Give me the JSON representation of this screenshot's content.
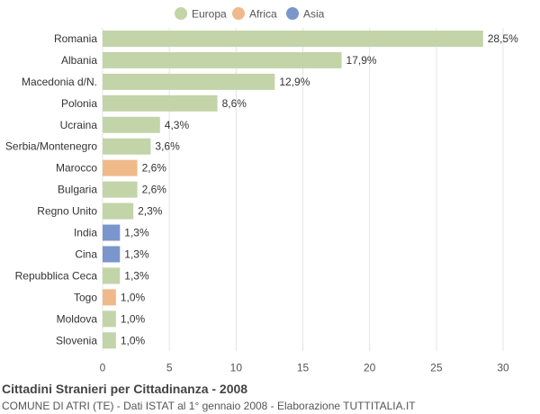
{
  "chart_data": {
    "type": "bar",
    "orientation": "horizontal",
    "title": "Cittadini Stranieri per Cittadinanza - 2008",
    "subtitle": "COMUNE DI ATRI (TE) - Dati ISTAT al 1° gennaio 2008 - Elaborazione TUTTITALIA.IT",
    "legend": {
      "placement": "top-center",
      "items": [
        {
          "name": "Europa",
          "color": "#c2d4a8"
        },
        {
          "name": "Africa",
          "color": "#f0b98a"
        },
        {
          "name": "Asia",
          "color": "#7b96cc"
        }
      ]
    },
    "xlim": [
      0,
      30
    ],
    "xticks": [
      0,
      5,
      10,
      15,
      20,
      25,
      30
    ],
    "grid": true,
    "categories": [
      "Romania",
      "Albania",
      "Macedonia d/N.",
      "Polonia",
      "Ucraina",
      "Serbia/Montenegro",
      "Marocco",
      "Bulgaria",
      "Regno Unito",
      "India",
      "Cina",
      "Repubblica Ceca",
      "Togo",
      "Moldova",
      "Slovenia"
    ],
    "values": [
      28.5,
      17.9,
      12.9,
      8.6,
      4.3,
      3.6,
      2.6,
      2.6,
      2.3,
      1.3,
      1.3,
      1.3,
      1.0,
      1.0,
      1.0
    ],
    "value_labels": [
      "28,5%",
      "17,9%",
      "12,9%",
      "8,6%",
      "4,3%",
      "3,6%",
      "2,6%",
      "2,6%",
      "2,3%",
      "1,3%",
      "1,3%",
      "1,3%",
      "1,0%",
      "1,0%",
      "1,0%"
    ],
    "groups": [
      "Europa",
      "Europa",
      "Europa",
      "Europa",
      "Europa",
      "Europa",
      "Africa",
      "Europa",
      "Europa",
      "Asia",
      "Asia",
      "Europa",
      "Africa",
      "Europa",
      "Europa"
    ]
  }
}
